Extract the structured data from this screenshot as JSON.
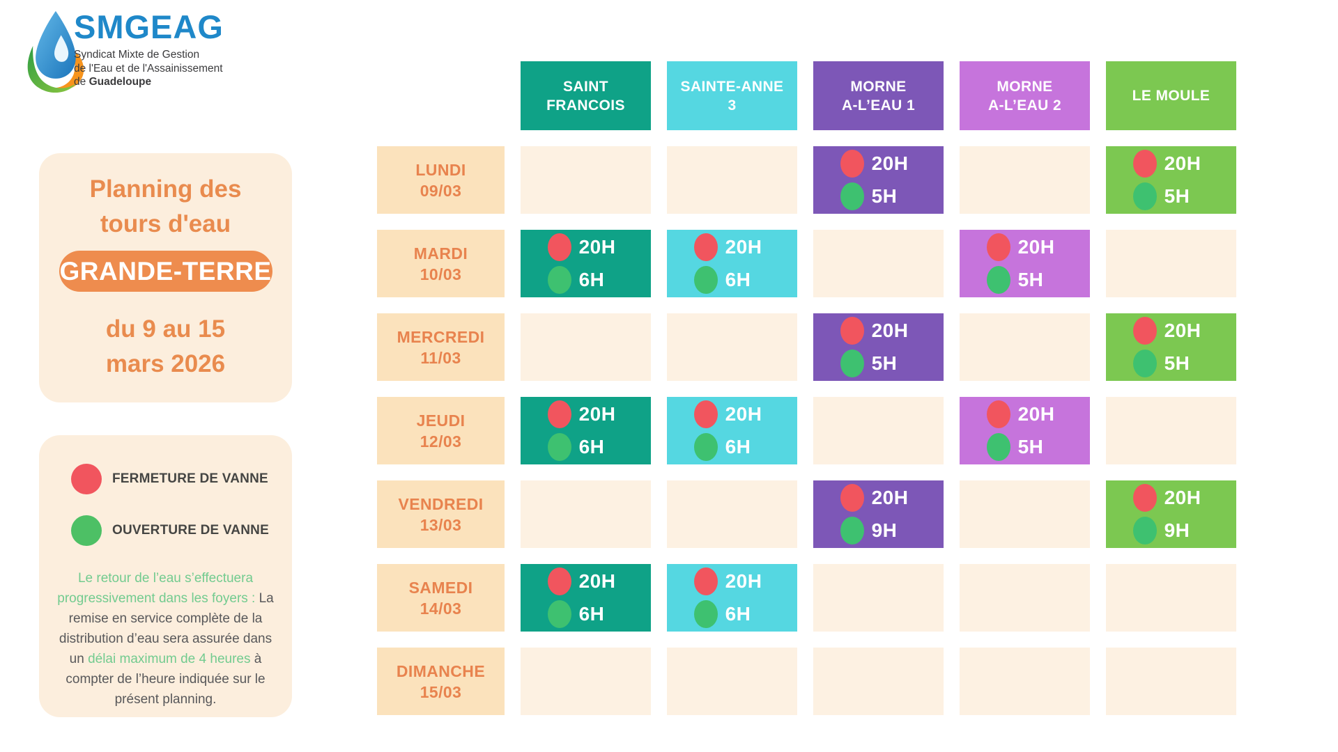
{
  "logo": {
    "brand": "SMGEAG",
    "subtitle_line1": "Syndicat Mixte de Gestion",
    "subtitle_line2": "de l'Eau et de l'Assainissement",
    "subtitle_line3_prefix": "de ",
    "subtitle_line3_bold": "Guadeloupe"
  },
  "title_panel": {
    "title_line1": "Planning des",
    "title_line2": "tours d'eau",
    "region_badge": "GRANDE-TERRE",
    "date_line1": "du 9 au 15",
    "date_line2": "mars 2026"
  },
  "legend_panel": {
    "items": [
      {
        "icon": "close-dot",
        "color": "#F1555E",
        "label": "FERMETURE DE VANNE"
      },
      {
        "icon": "open-dot",
        "color": "#4DC065",
        "label": "OUVERTURE DE VANNE"
      }
    ],
    "note_segments": [
      {
        "text": "Le retour de l’eau s’effectuera progressivement dans les foyers : ",
        "tone": "green"
      },
      {
        "text": "La remise en service complète de la distribution d’eau sera assurée dans un ",
        "tone": "gray"
      },
      {
        "text": "délai maximum de 4 heures",
        "tone": "green"
      },
      {
        "text": " à compter de l’heure indiquée sur le présent planning.",
        "tone": "gray"
      }
    ]
  },
  "schedule": {
    "columns": [
      {
        "id": "saint-francois",
        "label_lines": [
          "SAINT",
          "FRANCOIS"
        ],
        "color": "#0FA287"
      },
      {
        "id": "sainte-anne-3",
        "label_lines": [
          "SAINTE-ANNE",
          "3"
        ],
        "color": "#55D7E1"
      },
      {
        "id": "morne-a-leau-1",
        "label_lines": [
          "MORNE",
          "A-L’EAU 1"
        ],
        "color": "#7D57B7"
      },
      {
        "id": "morne-a-leau-2",
        "label_lines": [
          "MORNE",
          "A-L’EAU 2"
        ],
        "color": "#C674DC"
      },
      {
        "id": "le-moule",
        "label_lines": [
          "LE MOULE"
        ],
        "color": "#7CC851"
      }
    ],
    "rows": [
      {
        "id": "lundi",
        "day": "LUNDI",
        "date": "09/03",
        "cells": [
          null,
          null,
          {
            "close": "20H",
            "open": "5H"
          },
          null,
          {
            "close": "20H",
            "open": "5H"
          }
        ]
      },
      {
        "id": "mardi",
        "day": "MARDI",
        "date": "10/03",
        "cells": [
          {
            "close": "20H",
            "open": "6H"
          },
          {
            "close": "20H",
            "open": "6H"
          },
          null,
          {
            "close": "20H",
            "open": "5H"
          },
          null
        ]
      },
      {
        "id": "mercredi",
        "day": "MERCREDI",
        "date": "11/03",
        "cells": [
          null,
          null,
          {
            "close": "20H",
            "open": "5H"
          },
          null,
          {
            "close": "20H",
            "open": "5H"
          }
        ]
      },
      {
        "id": "jeudi",
        "day": "JEUDI",
        "date": "12/03",
        "cells": [
          {
            "close": "20H",
            "open": "6H"
          },
          {
            "close": "20H",
            "open": "6H"
          },
          null,
          {
            "close": "20H",
            "open": "5H"
          },
          null
        ]
      },
      {
        "id": "vendredi",
        "day": "VENDREDI",
        "date": "13/03",
        "cells": [
          null,
          null,
          {
            "close": "20H",
            "open": "9H"
          },
          null,
          {
            "close": "20H",
            "open": "9H"
          }
        ]
      },
      {
        "id": "samedi",
        "day": "SAMEDI",
        "date": "14/03",
        "cells": [
          {
            "close": "20H",
            "open": "6H"
          },
          {
            "close": "20H",
            "open": "6H"
          },
          null,
          null,
          null
        ]
      },
      {
        "id": "dimanche",
        "day": "DIMANCHE",
        "date": "15/03",
        "cells": [
          null,
          null,
          null,
          null,
          null
        ]
      }
    ]
  },
  "colors": {
    "accent_orange": "#E98B4E",
    "badge_orange": "#EE8C4E",
    "panel_cream": "#FCEEDD",
    "day_cell_cream": "#FBE2BC",
    "empty_cell_cream": "#FDF1E2",
    "valve_close_red": "#F1555E",
    "valve_open_green": "#3EC170",
    "brand_blue": "#1F88C9"
  }
}
